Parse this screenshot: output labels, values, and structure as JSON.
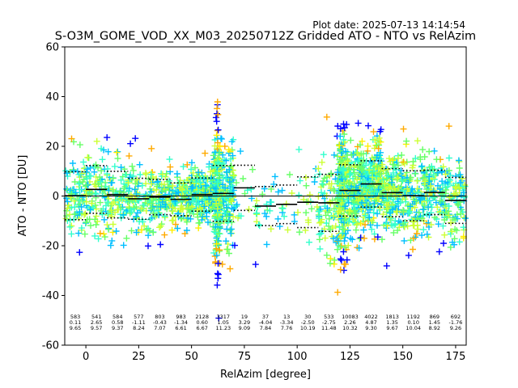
{
  "plot_date": "Plot date: 2025-07-13 14:14:54",
  "title": "S-O3M_GOME_VOD_XX_M03_20250712Z Gridded ATO - NTO vs RelAzim",
  "chart_data": {
    "type": "scatter",
    "xlabel": "RelAzim [degree]",
    "ylabel": "ATO - NTO [DU]",
    "xlim": [
      -10,
      180
    ],
    "ylim": [
      -60,
      60
    ],
    "xticks": [
      0,
      25,
      50,
      75,
      100,
      125,
      150,
      175
    ],
    "yticks": [
      -60,
      -40,
      -20,
      0,
      20,
      40,
      60
    ],
    "grid": false,
    "zero_line": true,
    "marker": "+",
    "point_colors": [
      "#0000ff",
      "#00bfff",
      "#33ffcc",
      "#66ff66",
      "#ccff33",
      "#ffee00",
      "#ffaa00"
    ],
    "bins": [
      {
        "x": -5,
        "count": "583",
        "mean": "0.11",
        "std": "9.65"
      },
      {
        "x": 5,
        "count": "541",
        "mean": "2.65",
        "std": "9.57"
      },
      {
        "x": 15,
        "count": "584",
        "mean": "0.58",
        "std": "9.37"
      },
      {
        "x": 25,
        "count": "577",
        "mean": "-1.11",
        "std": "8.24"
      },
      {
        "x": 35,
        "count": "803",
        "mean": "-0.43",
        "std": "7.07"
      },
      {
        "x": 45,
        "count": "983",
        "mean": "-1.34",
        "std": "6.61"
      },
      {
        "x": 55,
        "count": "2128",
        "mean": "0.60",
        "std": "6.67"
      },
      {
        "x": 65,
        "count": "3317",
        "mean": "1.05",
        "std": "11.23"
      },
      {
        "x": 75,
        "count": "19",
        "mean": "3.29",
        "std": "9.09"
      },
      {
        "x": 85,
        "count": "37",
        "mean": "-4.04",
        "std": "7.84"
      },
      {
        "x": 95,
        "count": "13",
        "mean": "-3.34",
        "std": "7.76"
      },
      {
        "x": 105,
        "count": "30",
        "mean": "-2.50",
        "std": "10.19"
      },
      {
        "x": 115,
        "count": "533",
        "mean": "-2.75",
        "std": "11.48"
      },
      {
        "x": 125,
        "count": "10083",
        "mean": "2.26",
        "std": "10.32"
      },
      {
        "x": 135,
        "count": "4022",
        "mean": "4.87",
        "std": "9.30"
      },
      {
        "x": 145,
        "count": "1813",
        "mean": "1.35",
        "std": "9.67"
      },
      {
        "x": 155,
        "count": "1192",
        "mean": "0.10",
        "std": "10.04"
      },
      {
        "x": 165,
        "count": "869",
        "mean": "1.45",
        "std": "8.92"
      },
      {
        "x": 175,
        "count": "692",
        "mean": "-1.76",
        "std": "9.26"
      }
    ]
  }
}
